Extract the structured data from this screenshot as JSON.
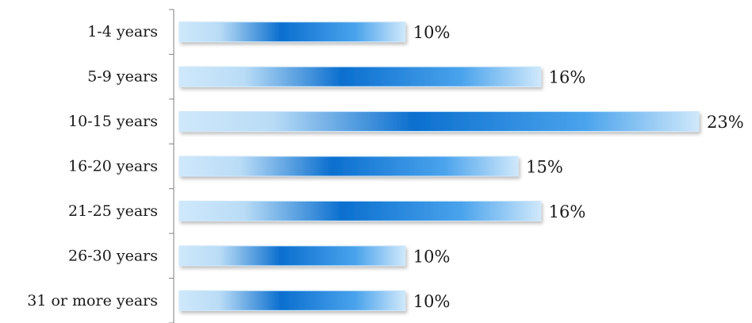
{
  "chart_data": {
    "type": "bar",
    "orientation": "horizontal",
    "categories": [
      "1-4 years",
      "5-9 years",
      "10-15 years",
      "16-20 years",
      "21-25 years",
      "26-30 years",
      "31 or more years"
    ],
    "values": [
      10,
      16,
      23,
      15,
      16,
      10,
      10
    ],
    "value_labels": [
      "10%",
      "16%",
      "23%",
      "15%",
      "16%",
      "10%",
      "10%"
    ],
    "title": "",
    "xlabel": "",
    "ylabel": "",
    "xlim": [
      0,
      23
    ],
    "grid": false,
    "legend": "none",
    "colors": {
      "bar_edge": "#cfe8fb",
      "bar_light": "#b9dcf6",
      "bar_mid": "#4aa3ec",
      "bar_dark": "#0b6fcf",
      "axis": "#7f7f7f",
      "text": "#1a1a1a"
    }
  }
}
